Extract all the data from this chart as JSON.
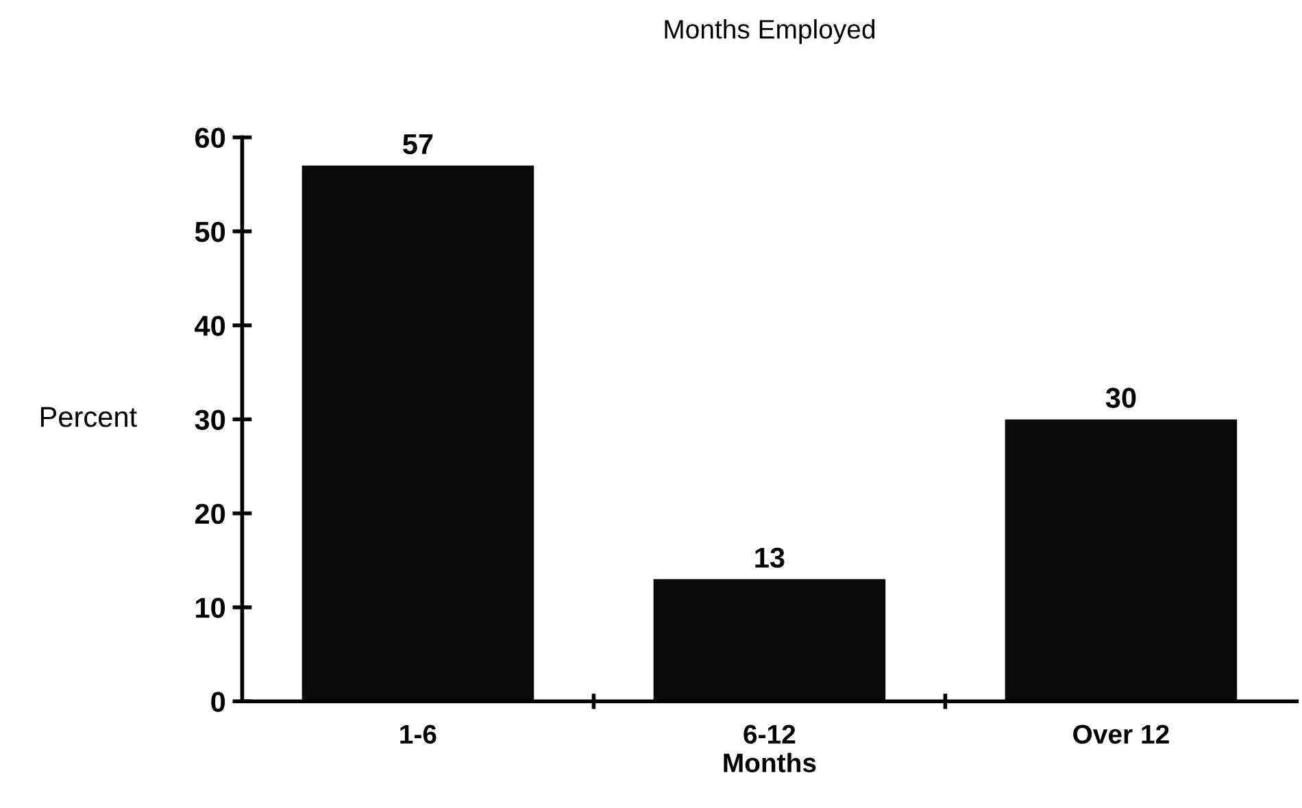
{
  "chart_data": {
    "type": "bar",
    "title": "Months Employed",
    "xlabel": "Months",
    "ylabel": "Percent",
    "categories": [
      "1-6",
      "6-12",
      "Over 12"
    ],
    "values": [
      57,
      13,
      30
    ],
    "color": "#0a0a0a",
    "ylim": [
      0,
      60
    ],
    "yticks": [
      0,
      10,
      20,
      30,
      40,
      50,
      60
    ],
    "data_labels": true,
    "grid": false,
    "legend": false
  }
}
